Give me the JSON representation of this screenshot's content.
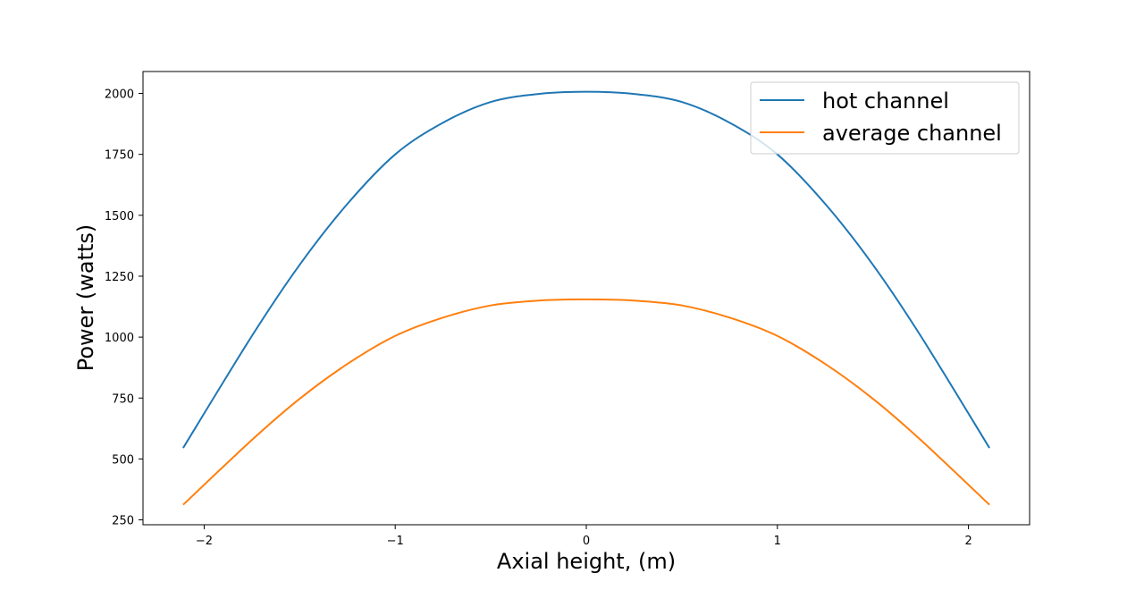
{
  "chart_data": {
    "type": "line",
    "title": "",
    "xlabel": "Axial height, (m)",
    "ylabel": "Power (watts)",
    "xlim": [
      -2.32,
      2.32
    ],
    "ylim": [
      230,
      2090
    ],
    "xticks": [
      -2,
      -1,
      0,
      1,
      2
    ],
    "xtick_labels": [
      "−2",
      "−1",
      "0",
      "1",
      "2"
    ],
    "yticks": [
      250,
      500,
      750,
      1000,
      1250,
      1500,
      1750,
      2000
    ],
    "ytick_labels": [
      "250",
      "500",
      "750",
      "1000",
      "1250",
      "1500",
      "1750",
      "2000"
    ],
    "grid": false,
    "legend_position": "top-right",
    "series": [
      {
        "name": "hot channel",
        "color": "#1f77b4",
        "x": [
          -2.11,
          -1.75,
          -1.5,
          -1.25,
          -1.0,
          -0.75,
          -0.5,
          -0.25,
          0.0,
          0.25,
          0.5,
          0.75,
          1.0,
          1.25,
          1.5,
          1.75,
          2.11
        ],
        "y": [
          545,
          1005,
          1297,
          1547,
          1750,
          1880,
          1965,
          1998,
          2007,
          1998,
          1965,
          1880,
          1750,
          1547,
          1297,
          1005,
          545
        ]
      },
      {
        "name": "average channel",
        "color": "#ff7f0e",
        "x": [
          -2.11,
          -1.75,
          -1.5,
          -1.25,
          -1.0,
          -0.75,
          -0.5,
          -0.25,
          0.0,
          0.25,
          0.5,
          0.75,
          1.0,
          1.25,
          1.5,
          1.75,
          2.11
        ],
        "y": [
          312,
          578,
          747,
          890,
          1005,
          1080,
          1130,
          1150,
          1155,
          1150,
          1130,
          1080,
          1005,
          890,
          747,
          578,
          312
        ]
      }
    ]
  }
}
